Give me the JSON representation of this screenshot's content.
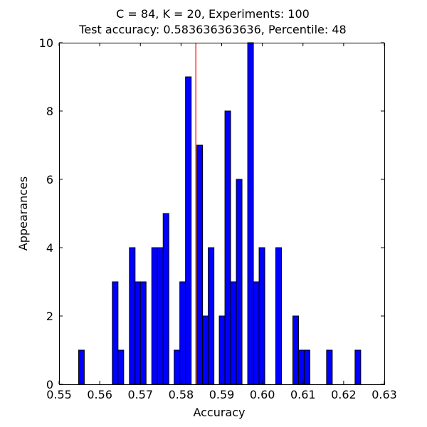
{
  "chart_data": {
    "type": "bar",
    "title_line1": "C = 84, K = 20, Experiments: 100",
    "title_line2": "Test accuracy: 0.583636363636, Percentile: 48",
    "xlabel": "Accuracy",
    "ylabel": "Appearances",
    "xlim": [
      0.55,
      0.63
    ],
    "ylim": [
      0,
      10
    ],
    "xticks": [
      0.55,
      0.56,
      0.57,
      0.58,
      0.59,
      0.6,
      0.61,
      0.62,
      0.63
    ],
    "xtick_labels": [
      "0.55",
      "0.56",
      "0.57",
      "0.58",
      "0.59",
      "0.60",
      "0.61",
      "0.62",
      "0.63"
    ],
    "yticks": [
      0,
      2,
      4,
      6,
      8,
      10
    ],
    "ytick_labels": [
      "0",
      "2",
      "4",
      "6",
      "8",
      "10"
    ],
    "bin_width": 0.0014,
    "bins": [
      {
        "x": 0.5548,
        "count": 1
      },
      {
        "x": 0.5631,
        "count": 3
      },
      {
        "x": 0.5645,
        "count": 1
      },
      {
        "x": 0.5673,
        "count": 4
      },
      {
        "x": 0.5687,
        "count": 3
      },
      {
        "x": 0.57,
        "count": 3
      },
      {
        "x": 0.5728,
        "count": 4
      },
      {
        "x": 0.5742,
        "count": 4
      },
      {
        "x": 0.5756,
        "count": 5
      },
      {
        "x": 0.5783,
        "count": 1
      },
      {
        "x": 0.5797,
        "count": 3
      },
      {
        "x": 0.5811,
        "count": 9
      },
      {
        "x": 0.5839,
        "count": 7
      },
      {
        "x": 0.5853,
        "count": 2
      },
      {
        "x": 0.5867,
        "count": 4
      },
      {
        "x": 0.5894,
        "count": 2
      },
      {
        "x": 0.5908,
        "count": 8
      },
      {
        "x": 0.5922,
        "count": 3
      },
      {
        "x": 0.5936,
        "count": 6
      },
      {
        "x": 0.5964,
        "count": 10
      },
      {
        "x": 0.5978,
        "count": 3
      },
      {
        "x": 0.5992,
        "count": 4
      },
      {
        "x": 0.6033,
        "count": 4
      },
      {
        "x": 0.6075,
        "count": 2
      },
      {
        "x": 0.6089,
        "count": 1
      },
      {
        "x": 0.6103,
        "count": 1
      },
      {
        "x": 0.6158,
        "count": 1
      },
      {
        "x": 0.6228,
        "count": 1
      }
    ],
    "reference_line": {
      "x": 0.583636363636,
      "color": "#ff0000"
    },
    "bar_color": "#0000ff",
    "bar_edge_color": "#000000",
    "grid": false,
    "legend": "none"
  }
}
